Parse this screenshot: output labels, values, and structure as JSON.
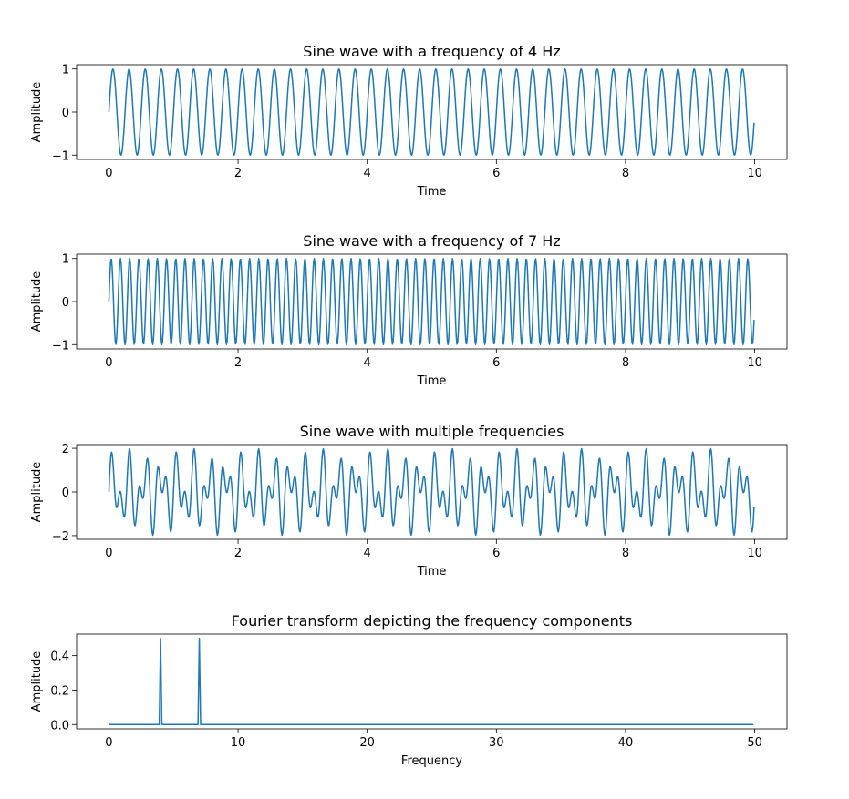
{
  "chart_data": [
    {
      "type": "line",
      "title": "Sine wave with a frequency of 4 Hz",
      "xlabel": "Time",
      "ylabel": "Amplitude",
      "signal": {
        "frequencies_hz": [
          4
        ],
        "sampling_rate_hz": 100,
        "t_start": 0,
        "t_end": 10
      },
      "xlim": [
        -0.5,
        10.5
      ],
      "ylim": [
        -1.1,
        1.1
      ],
      "xticks": [
        0,
        2,
        4,
        6,
        8,
        10
      ],
      "yticks": [
        -1,
        0,
        1
      ],
      "grid": false,
      "color": "#1f77b4"
    },
    {
      "type": "line",
      "title": "Sine wave with a frequency of 7 Hz",
      "xlabel": "Time",
      "ylabel": "Amplitude",
      "signal": {
        "frequencies_hz": [
          7
        ],
        "sampling_rate_hz": 100,
        "t_start": 0,
        "t_end": 10
      },
      "xlim": [
        -0.5,
        10.5
      ],
      "ylim": [
        -1.1,
        1.1
      ],
      "xticks": [
        0,
        2,
        4,
        6,
        8,
        10
      ],
      "yticks": [
        -1,
        0,
        1
      ],
      "grid": false,
      "color": "#1f77b4"
    },
    {
      "type": "line",
      "title": "Sine wave with multiple frequencies",
      "xlabel": "Time",
      "ylabel": "Amplitude",
      "signal": {
        "frequencies_hz": [
          4,
          7
        ],
        "sampling_rate_hz": 100,
        "t_start": 0,
        "t_end": 10
      },
      "xlim": [
        -0.5,
        10.5
      ],
      "ylim": [
        -2.17,
        2.17
      ],
      "xticks": [
        0,
        2,
        4,
        6,
        8,
        10
      ],
      "yticks": [
        -2,
        0,
        2
      ],
      "grid": false,
      "color": "#1f77b4"
    },
    {
      "type": "line",
      "title": "Fourier transform depicting the frequency components",
      "xlabel": "Frequency",
      "ylabel": "Amplitude",
      "spectrum": {
        "freq_start": 0,
        "freq_end": 49.9,
        "freq_step": 0.1,
        "peaks": [
          {
            "x": 4,
            "y": 0.5
          },
          {
            "x": 7,
            "y": 0.5
          }
        ],
        "baseline": 0
      },
      "xlim": [
        -2.5,
        52.5
      ],
      "ylim": [
        -0.025,
        0.525
      ],
      "xticks": [
        0,
        10,
        20,
        30,
        40,
        50
      ],
      "yticks": [
        0.0,
        0.2,
        0.4
      ],
      "ytick_labels": [
        "0.0",
        "0.2",
        "0.4"
      ],
      "grid": false,
      "color": "#1f77b4"
    }
  ]
}
